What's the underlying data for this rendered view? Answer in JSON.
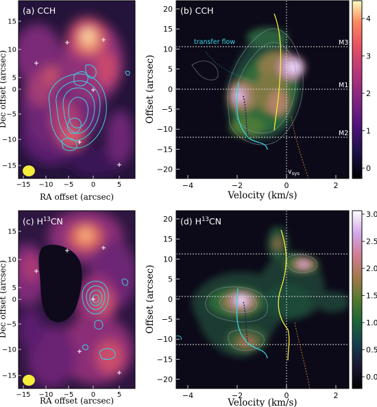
{
  "panels": {
    "a": {
      "label": "(a) CCH"
    },
    "b": {
      "label": "(b) CCH"
    },
    "c": {
      "label": "(c) H",
      "label_sup": "13",
      "label_end": "CN"
    },
    "d": {
      "label": "(d) H",
      "label_sup": "13",
      "label_end": "CN"
    }
  },
  "map_axes": {
    "xlabel": "RA offset (arcsec)",
    "ylabel": "Dec offset (arcsec)",
    "xticks": [
      "−15",
      "−10",
      "−5",
      "0",
      "5"
    ],
    "yticks": [
      "15",
      "10",
      "5",
      "0",
      "−5",
      "−10",
      "−15"
    ]
  },
  "pv_axes": {
    "xlabel": "Velocity (km/s)",
    "ylabel": "Offset (arcsec)",
    "xticks": [
      "−4",
      "−2",
      "0",
      "2"
    ],
    "yticks": [
      "20",
      "15",
      "10",
      "5",
      "0",
      "−5",
      "−10",
      "−15",
      "−20"
    ]
  },
  "annotations": {
    "transfer_flow": "transfer flow",
    "m3": "M3",
    "m1": "M1",
    "m2": "M2",
    "vsys": "v",
    "vsys_sub": "sys"
  },
  "colorbar_b": {
    "ticks": [
      "4",
      "3",
      "2",
      "1",
      "0"
    ]
  },
  "colorbar_d": {
    "ticks": [
      "3.0",
      "2.5",
      "2.0",
      "1.5",
      "1.0",
      "0.5",
      "0.0"
    ]
  },
  "colors": {
    "cyan": "#39d6e6",
    "yellow": "#f7ec3a",
    "background": "#0e0a1c"
  }
}
